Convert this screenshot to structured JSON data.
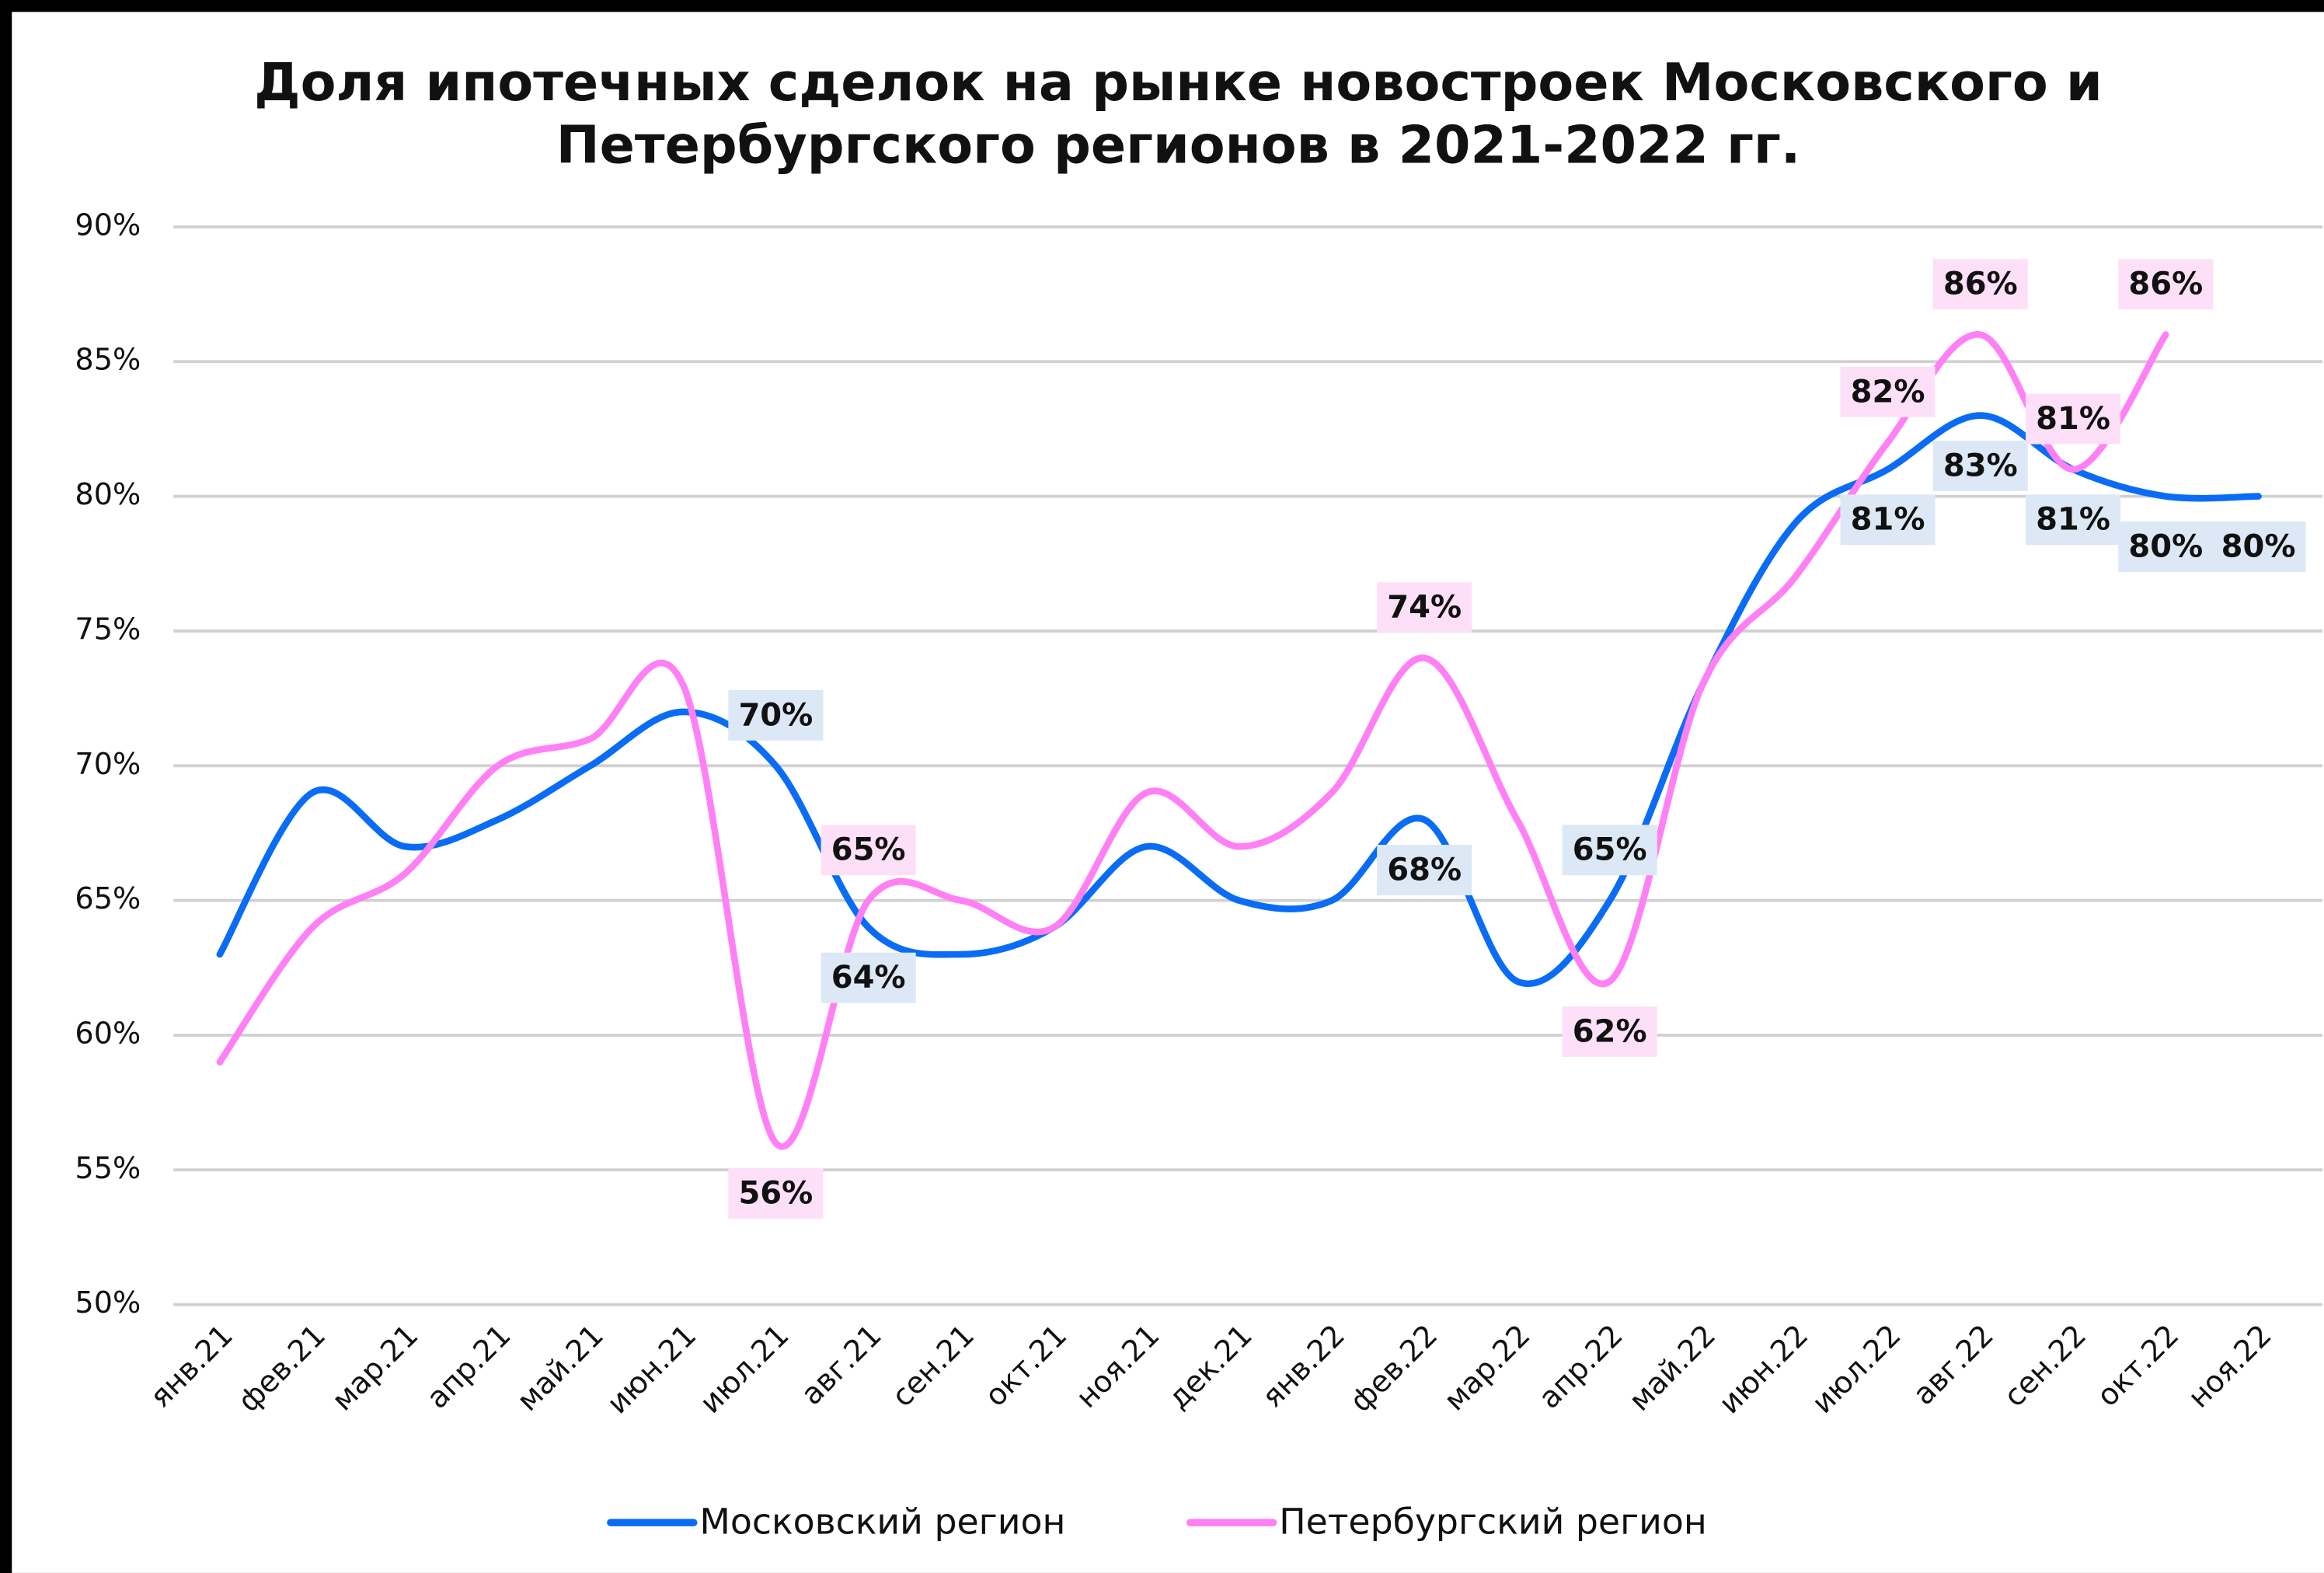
{
  "chart_data": {
    "type": "line",
    "title": [
      "Доля ипотечных сделок на рынке новостроек Московского и",
      "Петербургского регионов в 2021-2022 гг."
    ],
    "categories": [
      "янв.21",
      "фев.21",
      "мар.21",
      "апр.21",
      "май.21",
      "июн.21",
      "июл.21",
      "авг.21",
      "сен.21",
      "окт.21",
      "ноя.21",
      "дек.21",
      "янв.22",
      "фев.22",
      "мар.22",
      "апр.22",
      "май.22",
      "июн.22",
      "июл.22",
      "авг.22",
      "сен.22",
      "окт.22",
      "ноя.22"
    ],
    "series": [
      {
        "name": "Московский регион",
        "color": "#0a6cf5",
        "label_fill": "#dce8f5",
        "values": [
          63,
          69,
          67,
          68,
          70,
          72,
          70,
          64,
          63,
          64,
          67,
          65,
          65,
          68,
          62,
          65,
          73,
          79,
          81,
          83,
          81,
          80,
          80
        ],
        "value_labels": [
          null,
          null,
          null,
          null,
          null,
          null,
          "70%",
          "64%",
          null,
          null,
          null,
          null,
          null,
          "68%",
          null,
          "65%",
          null,
          null,
          "81%",
          "83%",
          "81%",
          "80%",
          "80%"
        ]
      },
      {
        "name": "Петербургский регион",
        "color": "#ff80f5",
        "label_fill": "#fde0f8",
        "values": [
          59,
          64,
          66,
          70,
          71,
          73,
          56,
          65,
          65,
          64,
          69,
          67,
          69,
          74,
          68,
          62,
          73,
          77,
          82,
          86,
          81,
          86,
          null
        ],
        "value_labels": [
          null,
          null,
          null,
          null,
          null,
          null,
          "56%",
          "65%",
          null,
          null,
          null,
          null,
          null,
          "74%",
          null,
          "62%",
          null,
          null,
          "82%",
          "86%",
          "81%",
          "86%",
          null
        ]
      }
    ],
    "ylim": [
      50,
      90
    ],
    "yticks": [
      {
        "value": 50,
        "label": "50%"
      },
      {
        "value": 55,
        "label": "55%"
      },
      {
        "value": 60,
        "label": "60%"
      },
      {
        "value": 65,
        "label": "65%"
      },
      {
        "value": 70,
        "label": "70%"
      },
      {
        "value": 75,
        "label": "75%"
      },
      {
        "value": 80,
        "label": "80%"
      },
      {
        "value": 85,
        "label": "85%"
      },
      {
        "value": 90,
        "label": "90%"
      }
    ],
    "grid": true,
    "legend": "bottom"
  }
}
